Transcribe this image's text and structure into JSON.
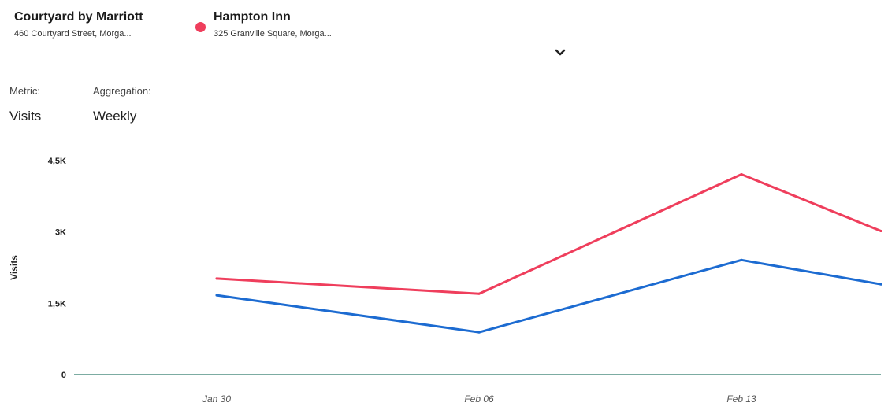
{
  "venues": [
    {
      "name": "Courtyard by Marriott",
      "address": "460 Courtyard Street, Morga...",
      "dot_color": ""
    },
    {
      "name": "Hampton Inn",
      "address": "325 Granville Square, Morga...",
      "dot_color": "#ef3e5c"
    }
  ],
  "controls": {
    "metric_label": "Metric:",
    "metric_value": "Visits",
    "aggregation_label": "Aggregation:",
    "aggregation_value": "Weekly"
  },
  "icons": {
    "expand": "chevron-down-icon"
  },
  "chart_data": {
    "type": "line",
    "ylabel": "Visits",
    "xlabel": "",
    "ylim": [
      0,
      4500
    ],
    "yticks": [
      {
        "value": 0,
        "label": "0"
      },
      {
        "value": 1500,
        "label": "1,5K"
      },
      {
        "value": 3000,
        "label": "3K"
      },
      {
        "value": 4500,
        "label": "4,5K"
      }
    ],
    "xticks": [
      "Jan 30",
      "Feb 06",
      "Feb 13"
    ],
    "series": [
      {
        "color": "#ef3e5c",
        "values": [
          2020,
          1700,
          4210,
          3020
        ]
      },
      {
        "color": "#1c6bd1",
        "values": [
          1670,
          890,
          2410,
          1900
        ]
      }
    ],
    "grid": false,
    "legend": "top-left"
  }
}
